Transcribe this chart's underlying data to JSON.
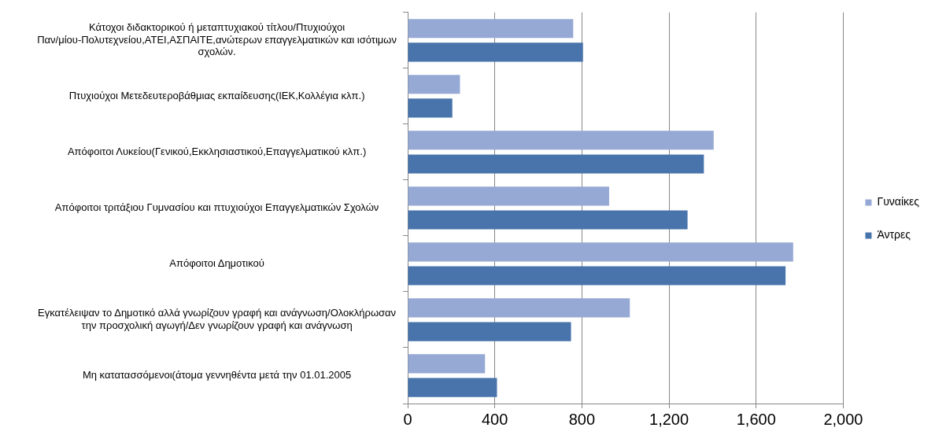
{
  "chart_data": {
    "type": "bar",
    "orientation": "horizontal",
    "categories": [
      "Κάτοχοι διδακτορικού ή μεταπτυχιακού τίτλου/Πτυχιούχοι Παν/μίου-Πολυτεχνείου,ΑΤΕΙ,ΑΣΠΑΙΤΕ,ανώτερων επαγγελματικών και ισότιμων σχολών.",
      "Πτυχιούχοι Μετεδευτεροβάθμιας εκπαίδευσης(ΙΕΚ,Κολλέγια κλπ.)",
      "Απόφοιτοι Λυκείου(Γενικού,Εκκλησιαστικού,Επαγγελματικού κλπ.)",
      "Απόφοιτοι τριτάξιου Γυμνασίου και πτυχιούχοι Επαγγελματικών Σχολών",
      "Απόφοιτοι Δημοτικού",
      "Εγκατέλειψαν το Δημοτικό αλλά γνωρίζουν γραφή και ανάγνωση/Ολοκλήρωσαν την προσχολική αγωγή/Δεν γνωρίζουν γραφή και ανάγνωση",
      "Μη κατατασσόμενοι(άτομα γεννηθέντα μετά την 01.01.2005"
    ],
    "series": [
      {
        "name": "Γυναίκες",
        "color": "#95a9d4",
        "values": [
          760,
          240,
          1405,
          925,
          1770,
          1020,
          355
        ]
      },
      {
        "name": "Άντρες",
        "color": "#4874ab",
        "values": [
          805,
          205,
          1360,
          1285,
          1735,
          750,
          410
        ]
      }
    ],
    "xlim": [
      0,
      2000
    ],
    "xticks": [
      0,
      400,
      800,
      {
        "value": 1200,
        "label": "1,200"
      },
      {
        "value": 1600,
        "label": "1,600"
      },
      {
        "value": 2000,
        "label": "2,000"
      }
    ],
    "grid": "x",
    "legend": "right"
  }
}
